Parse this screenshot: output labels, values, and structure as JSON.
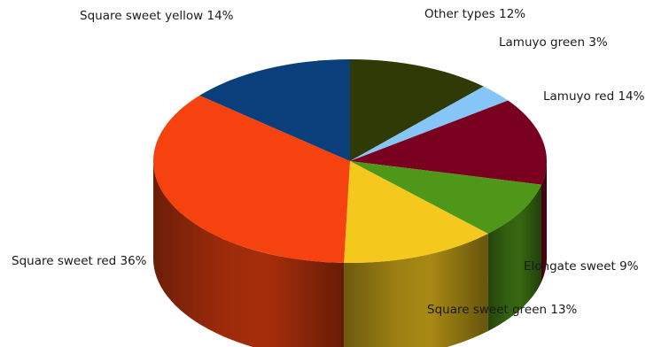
{
  "chart_data": {
    "type": "pie",
    "style": "3d",
    "title": "",
    "slices": [
      {
        "label": "Other types",
        "value": 12,
        "label_text": "Other types 12%",
        "color": "#2f3a06"
      },
      {
        "label": "Lamuyo green",
        "value": 3,
        "label_text": "Lamuyo green 3%",
        "color": "#86c5f7"
      },
      {
        "label": "Lamuyo red",
        "value": 14,
        "label_text": "Lamuyo red 14%",
        "color": "#7a0020"
      },
      {
        "label": "Elongate sweet",
        "value": 9,
        "label_text": "Elongate sweet 9%",
        "color": "#4f9718"
      },
      {
        "label": "Square sweet green",
        "value": 13,
        "label_text": "Square sweet green 13%",
        "color": "#f5c81d"
      },
      {
        "label": "Square sweet red",
        "value": 36,
        "label_text": "Square sweet red 36%",
        "color": "#f5420f"
      },
      {
        "label": "Square sweet yellow",
        "value": 14,
        "label_text": "Square sweet yellow 14%",
        "color": "#0b3f7c"
      }
    ]
  }
}
